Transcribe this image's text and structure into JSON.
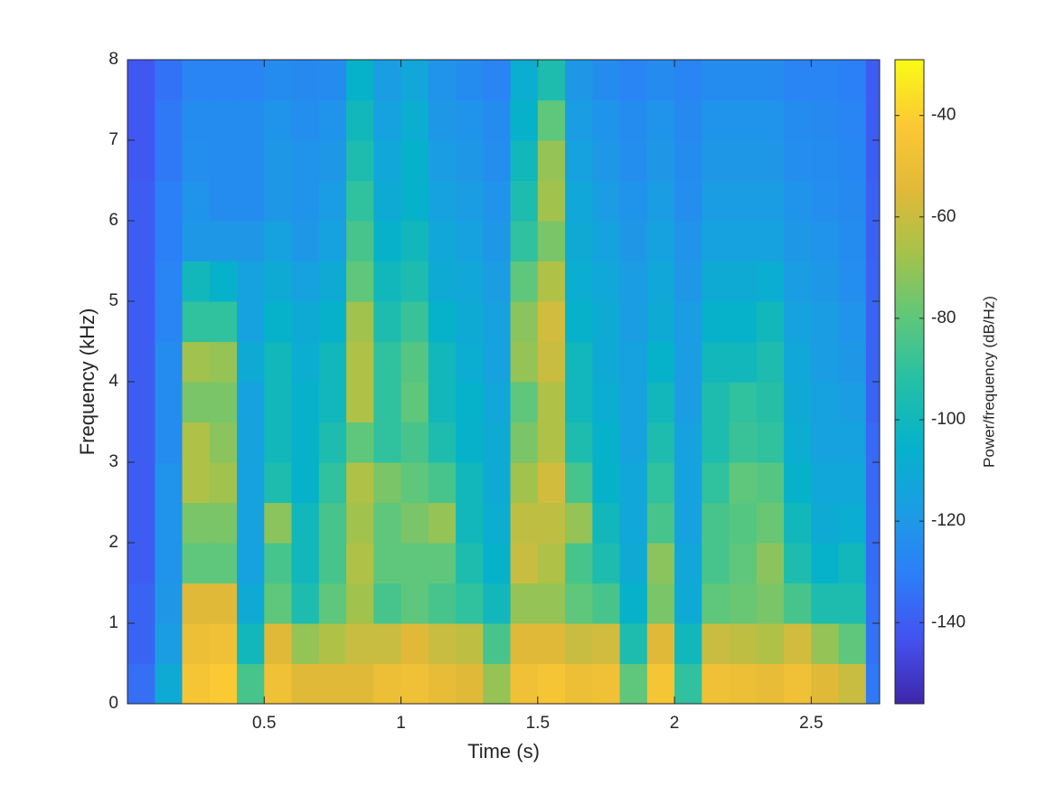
{
  "chart_data": {
    "type": "spectrogram",
    "xlabel": "Time (s)",
    "ylabel": "Frequency (kHz)",
    "colorbar_label": "Power/frequency (dB/Hz)",
    "x": [
      0.05,
      0.15,
      0.25,
      0.35,
      0.45,
      0.55,
      0.65,
      0.75,
      0.85,
      0.95,
      1.05,
      1.15,
      1.25,
      1.35,
      1.45,
      1.55,
      1.65,
      1.75,
      1.85,
      1.95,
      2.05,
      2.15,
      2.25,
      2.35,
      2.45,
      2.55,
      2.65,
      2.75
    ],
    "y": [
      0.25,
      0.75,
      1.25,
      1.75,
      2.25,
      2.75,
      3.25,
      3.75,
      4.25,
      4.75,
      5.25,
      5.75,
      6.25,
      6.75,
      7.25,
      7.75
    ],
    "values": [
      [
        -135,
        -138,
        -138,
        -140,
        -140,
        -140,
        -140,
        -140,
        -140,
        -140,
        -140,
        -140,
        -140,
        -142,
        -142,
        -142
      ],
      [
        -110,
        -118,
        -120,
        -122,
        -122,
        -122,
        -125,
        -125,
        -125,
        -128,
        -128,
        -130,
        -130,
        -132,
        -132,
        -134
      ],
      [
        -45,
        -50,
        -55,
        -80,
        -75,
        -65,
        -65,
        -75,
        -68,
        -90,
        -100,
        -120,
        -122,
        -124,
        -125,
        -128
      ],
      [
        -42,
        -48,
        -55,
        -80,
        -75,
        -68,
        -72,
        -75,
        -70,
        -90,
        -105,
        -120,
        -125,
        -125,
        -125,
        -128
      ],
      [
        -85,
        -100,
        -110,
        -115,
        -115,
        -115,
        -115,
        -115,
        -110,
        -115,
        -115,
        -120,
        -125,
        -125,
        -125,
        -128
      ],
      [
        -48,
        -55,
        -80,
        -85,
        -72,
        -95,
        -100,
        -100,
        -100,
        -105,
        -110,
        -115,
        -120,
        -120,
        -122,
        -125
      ],
      [
        -55,
        -70,
        -95,
        -100,
        -100,
        -105,
        -105,
        -105,
        -108,
        -110,
        -115,
        -120,
        -122,
        -122,
        -124,
        -126
      ],
      [
        -55,
        -65,
        -80,
        -85,
        -85,
        -90,
        -95,
        -100,
        -100,
        -105,
        -110,
        -115,
        -118,
        -120,
        -122,
        -125
      ],
      [
        -55,
        -60,
        -68,
        -65,
        -68,
        -65,
        -80,
        -65,
        -65,
        -68,
        -80,
        -85,
        -90,
        -95,
        -100,
        -105
      ],
      [
        -50,
        -60,
        -85,
        -80,
        -80,
        -75,
        -90,
        -90,
        -90,
        -95,
        -100,
        -105,
        -110,
        -112,
        -115,
        -118
      ],
      [
        -48,
        -55,
        -80,
        -80,
        -75,
        -80,
        -85,
        -80,
        -82,
        -88,
        -95,
        -100,
        -105,
        -105,
        -108,
        -112
      ],
      [
        -52,
        -60,
        -85,
        -80,
        -70,
        -85,
        -95,
        -100,
        -100,
        -105,
        -110,
        -112,
        -115,
        -118,
        -120,
        -122
      ],
      [
        -55,
        -62,
        -90,
        -95,
        -100,
        -100,
        -105,
        -105,
        -108,
        -110,
        -112,
        -115,
        -118,
        -120,
        -122,
        -125
      ],
      [
        -70,
        -85,
        -100,
        -105,
        -108,
        -110,
        -110,
        -112,
        -115,
        -115,
        -118,
        -120,
        -122,
        -124,
        -125,
        -128
      ],
      [
        -48,
        -55,
        -70,
        -60,
        -62,
        -68,
        -75,
        -80,
        -70,
        -72,
        -80,
        -90,
        -95,
        -100,
        -105,
        -108
      ],
      [
        -45,
        -55,
        -70,
        -65,
        -62,
        -58,
        -65,
        -65,
        -60,
        -58,
        -65,
        -75,
        -68,
        -70,
        -80,
        -95
      ],
      [
        -50,
        -60,
        -80,
        -85,
        -70,
        -85,
        -95,
        -100,
        -100,
        -105,
        -108,
        -110,
        -112,
        -115,
        -118,
        -120
      ],
      [
        -48,
        -58,
        -85,
        -95,
        -100,
        -105,
        -105,
        -108,
        -110,
        -110,
        -112,
        -115,
        -118,
        -120,
        -122,
        -125
      ],
      [
        -80,
        -95,
        -105,
        -110,
        -112,
        -112,
        -115,
        -115,
        -115,
        -118,
        -118,
        -120,
        -122,
        -124,
        -125,
        -128
      ],
      [
        -45,
        -55,
        -75,
        -72,
        -85,
        -90,
        -95,
        -100,
        -105,
        -110,
        -112,
        -115,
        -118,
        -120,
        -122,
        -125
      ],
      [
        -90,
        -100,
        -110,
        -112,
        -115,
        -115,
        -115,
        -118,
        -118,
        -118,
        -120,
        -122,
        -124,
        -125,
        -126,
        -128
      ],
      [
        -48,
        -60,
        -80,
        -85,
        -85,
        -90,
        -95,
        -95,
        -100,
        -105,
        -110,
        -115,
        -118,
        -120,
        -122,
        -125
      ],
      [
        -50,
        -62,
        -78,
        -80,
        -82,
        -80,
        -88,
        -90,
        -100,
        -105,
        -110,
        -115,
        -118,
        -120,
        -122,
        -125
      ],
      [
        -52,
        -65,
        -75,
        -72,
        -78,
        -82,
        -90,
        -92,
        -95,
        -100,
        -108,
        -115,
        -118,
        -120,
        -122,
        -125
      ],
      [
        -48,
        -58,
        -85,
        -95,
        -100,
        -105,
        -108,
        -110,
        -112,
        -115,
        -118,
        -120,
        -122,
        -124,
        -125,
        -128
      ],
      [
        -55,
        -70,
        -95,
        -105,
        -110,
        -112,
        -115,
        -115,
        -118,
        -118,
        -120,
        -122,
        -124,
        -125,
        -126,
        -128
      ],
      [
        -60,
        -80,
        -95,
        -100,
        -108,
        -112,
        -115,
        -118,
        -120,
        -122,
        -124,
        -125,
        -126,
        -127,
        -128,
        -130
      ],
      [
        -132,
        -134,
        -135,
        -136,
        -136,
        -137,
        -137,
        -138,
        -138,
        -138,
        -138,
        -139,
        -139,
        -140,
        -140,
        -140
      ]
    ],
    "xlim": [
      0,
      2.75
    ],
    "ylim": [
      0,
      8
    ],
    "clim": [
      -156,
      -29
    ],
    "xticks": [
      0.5,
      1,
      1.5,
      2,
      2.5
    ],
    "yticks": [
      0,
      1,
      2,
      3,
      4,
      5,
      6,
      7,
      8
    ],
    "cticks": [
      -140,
      -120,
      -100,
      -80,
      -60,
      -40
    ],
    "colormap": [
      "#3e26a8",
      "#4352f0",
      "#2c7ef8",
      "#1b9de3",
      "#06b2cb",
      "#24bfa7",
      "#5fc77a",
      "#a6c24a",
      "#e3b938",
      "#fcc934",
      "#f9fb15"
    ]
  }
}
